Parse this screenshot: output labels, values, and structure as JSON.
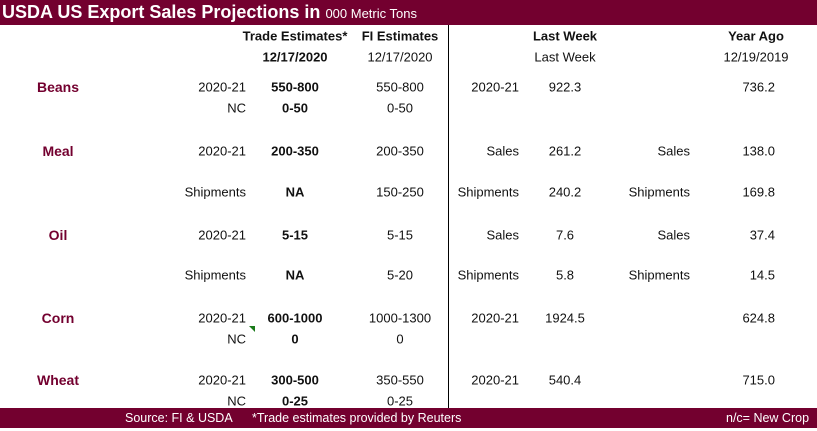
{
  "title": {
    "main": "USDA US Export Sales Projections in",
    "unit": "000 Metric Tons"
  },
  "headers": {
    "trade": "Trade Estimates*",
    "trade_date": "12/17/2020",
    "fi": "FI Estimates",
    "fi_date": "12/17/2020",
    "last_week": "Last Week",
    "last_week_sub": "Last Week",
    "year_ago": "Year Ago",
    "year_ago_date": "12/19/2019"
  },
  "rows": [
    {
      "label": "Beans",
      "type": "2020-21",
      "trade": "550-800",
      "fi": "550-800",
      "lw_type": "2020-21",
      "lw": "922.3",
      "ya_type": "",
      "ya": "736.2"
    },
    {
      "label": "",
      "type": "NC",
      "trade": "0-50",
      "fi": "0-50",
      "lw_type": "",
      "lw": "",
      "ya_type": "",
      "ya": ""
    },
    {
      "label": "Meal",
      "type": "2020-21",
      "trade": "200-350",
      "fi": "200-350",
      "lw_type": "Sales",
      "lw": "261.2",
      "ya_type": "Sales",
      "ya": "138.0"
    },
    {
      "label": "",
      "type": "Shipments",
      "trade": "NA",
      "fi": "150-250",
      "lw_type": "Shipments",
      "lw": "240.2",
      "ya_type": "Shipments",
      "ya": "169.8"
    },
    {
      "label": "Oil",
      "type": "2020-21",
      "trade": "5-15",
      "fi": "5-15",
      "lw_type": "Sales",
      "lw": "7.6",
      "ya_type": "Sales",
      "ya": "37.4"
    },
    {
      "label": "",
      "type": "Shipments",
      "trade": "NA",
      "fi": "5-20",
      "lw_type": "Shipments",
      "lw": "5.8",
      "ya_type": "Shipments",
      "ya": "14.5"
    },
    {
      "label": "Corn",
      "type": "2020-21",
      "trade": "600-1000",
      "fi": "1000-1300",
      "lw_type": "2020-21",
      "lw": "1924.5",
      "ya_type": "",
      "ya": "624.8"
    },
    {
      "label": "",
      "type": "NC",
      "trade": "0",
      "fi": "0",
      "lw_type": "",
      "lw": "",
      "ya_type": "",
      "ya": ""
    },
    {
      "label": "Wheat",
      "type": "2020-21",
      "trade": "300-500",
      "fi": "350-550",
      "lw_type": "2020-21",
      "lw": "540.4",
      "ya_type": "",
      "ya": "715.0"
    },
    {
      "label": "",
      "type": "NC",
      "trade": "0-25",
      "fi": "0-25",
      "lw_type": "",
      "lw": "",
      "ya_type": "",
      "ya": ""
    }
  ],
  "footer": {
    "source": "Source: FI & USDA",
    "note": "*Trade estimates provided by Reuters",
    "legend": "n/c= New Crop"
  }
}
